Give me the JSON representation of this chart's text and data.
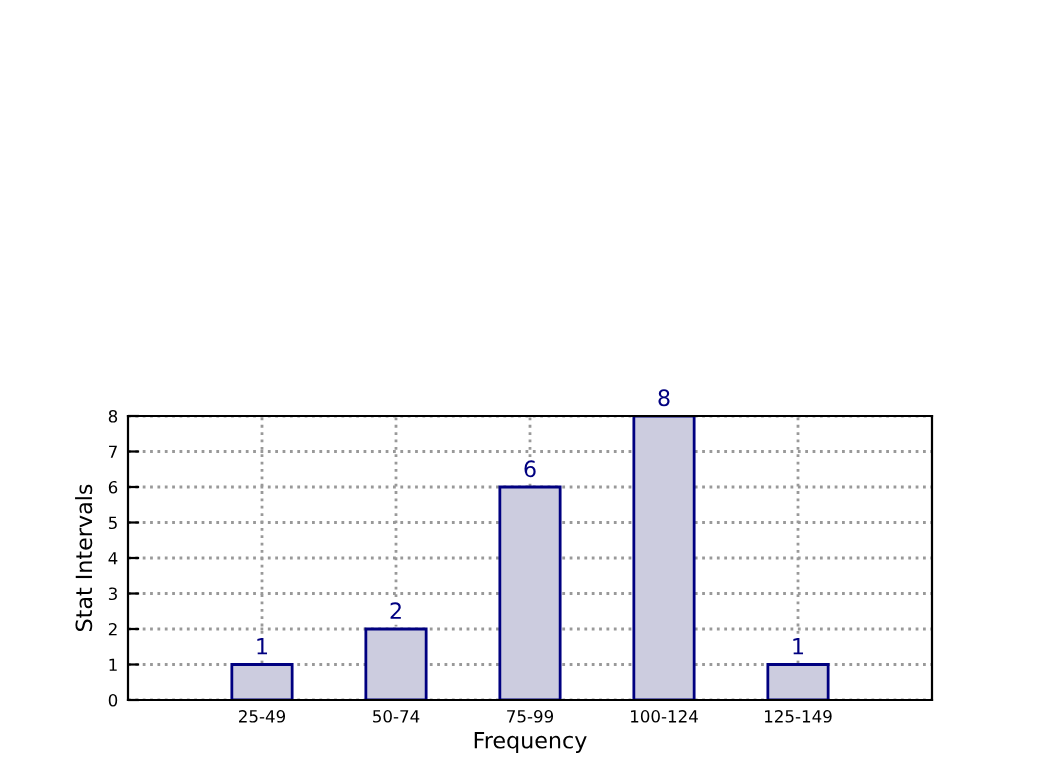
{
  "chart_data": {
    "type": "bar",
    "xlabel": "Frequency",
    "ylabel": "Stat Intervals",
    "categories": [
      "25-49",
      "50-74",
      "75-99",
      "100-124",
      "125-149"
    ],
    "values": [
      1,
      2,
      6,
      8,
      1
    ],
    "color": "#ccccdf",
    "ylim": [
      0,
      8
    ],
    "yticks": [
      0,
      1,
      2,
      3,
      4,
      5,
      6,
      7,
      8
    ],
    "grid": true,
    "data_labels": true
  }
}
